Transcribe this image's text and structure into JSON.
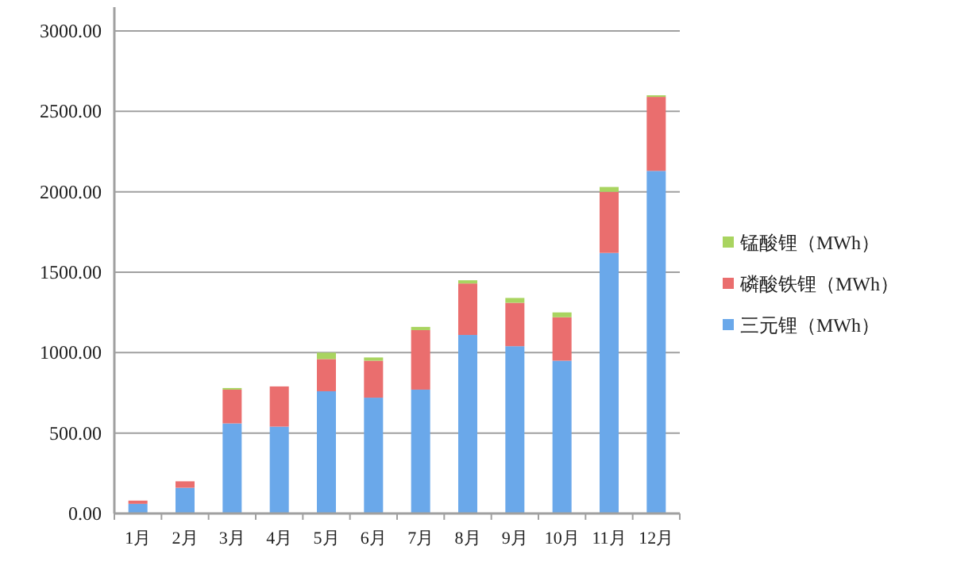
{
  "chart_data": {
    "type": "bar",
    "stacked": true,
    "categories": [
      "1月",
      "2月",
      "3月",
      "4月",
      "5月",
      "6月",
      "7月",
      "8月",
      "9月",
      "10月",
      "11月",
      "12月"
    ],
    "series": [
      {
        "name": "三元锂（MWh）",
        "color": "#6aa8ea",
        "values": [
          60,
          160,
          560,
          540,
          760,
          720,
          770,
          1110,
          1040,
          950,
          1620,
          2130
        ]
      },
      {
        "name": "磷酸铁锂（MWh）",
        "color": "#ea6e6e",
        "values": [
          20,
          40,
          210,
          250,
          200,
          230,
          370,
          320,
          270,
          270,
          380,
          460
        ]
      },
      {
        "name": "锰酸锂（MWh）",
        "color": "#a9d460",
        "values": [
          null,
          null,
          10,
          null,
          40,
          20,
          20,
          20,
          30,
          30,
          30,
          10
        ]
      }
    ],
    "ylim": [
      0,
      3000
    ],
    "yticks": [
      {
        "value": 0,
        "label": "0.00"
      },
      {
        "value": 500,
        "label": "500.00"
      },
      {
        "value": 1000,
        "label": "1000.00"
      },
      {
        "value": 1500,
        "label": "1500.00"
      },
      {
        "value": 2000,
        "label": "2000.00"
      },
      {
        "value": 2500,
        "label": "2500.00"
      },
      {
        "value": 3000,
        "label": "3000.00"
      }
    ],
    "grid": "y",
    "legend": "right"
  }
}
